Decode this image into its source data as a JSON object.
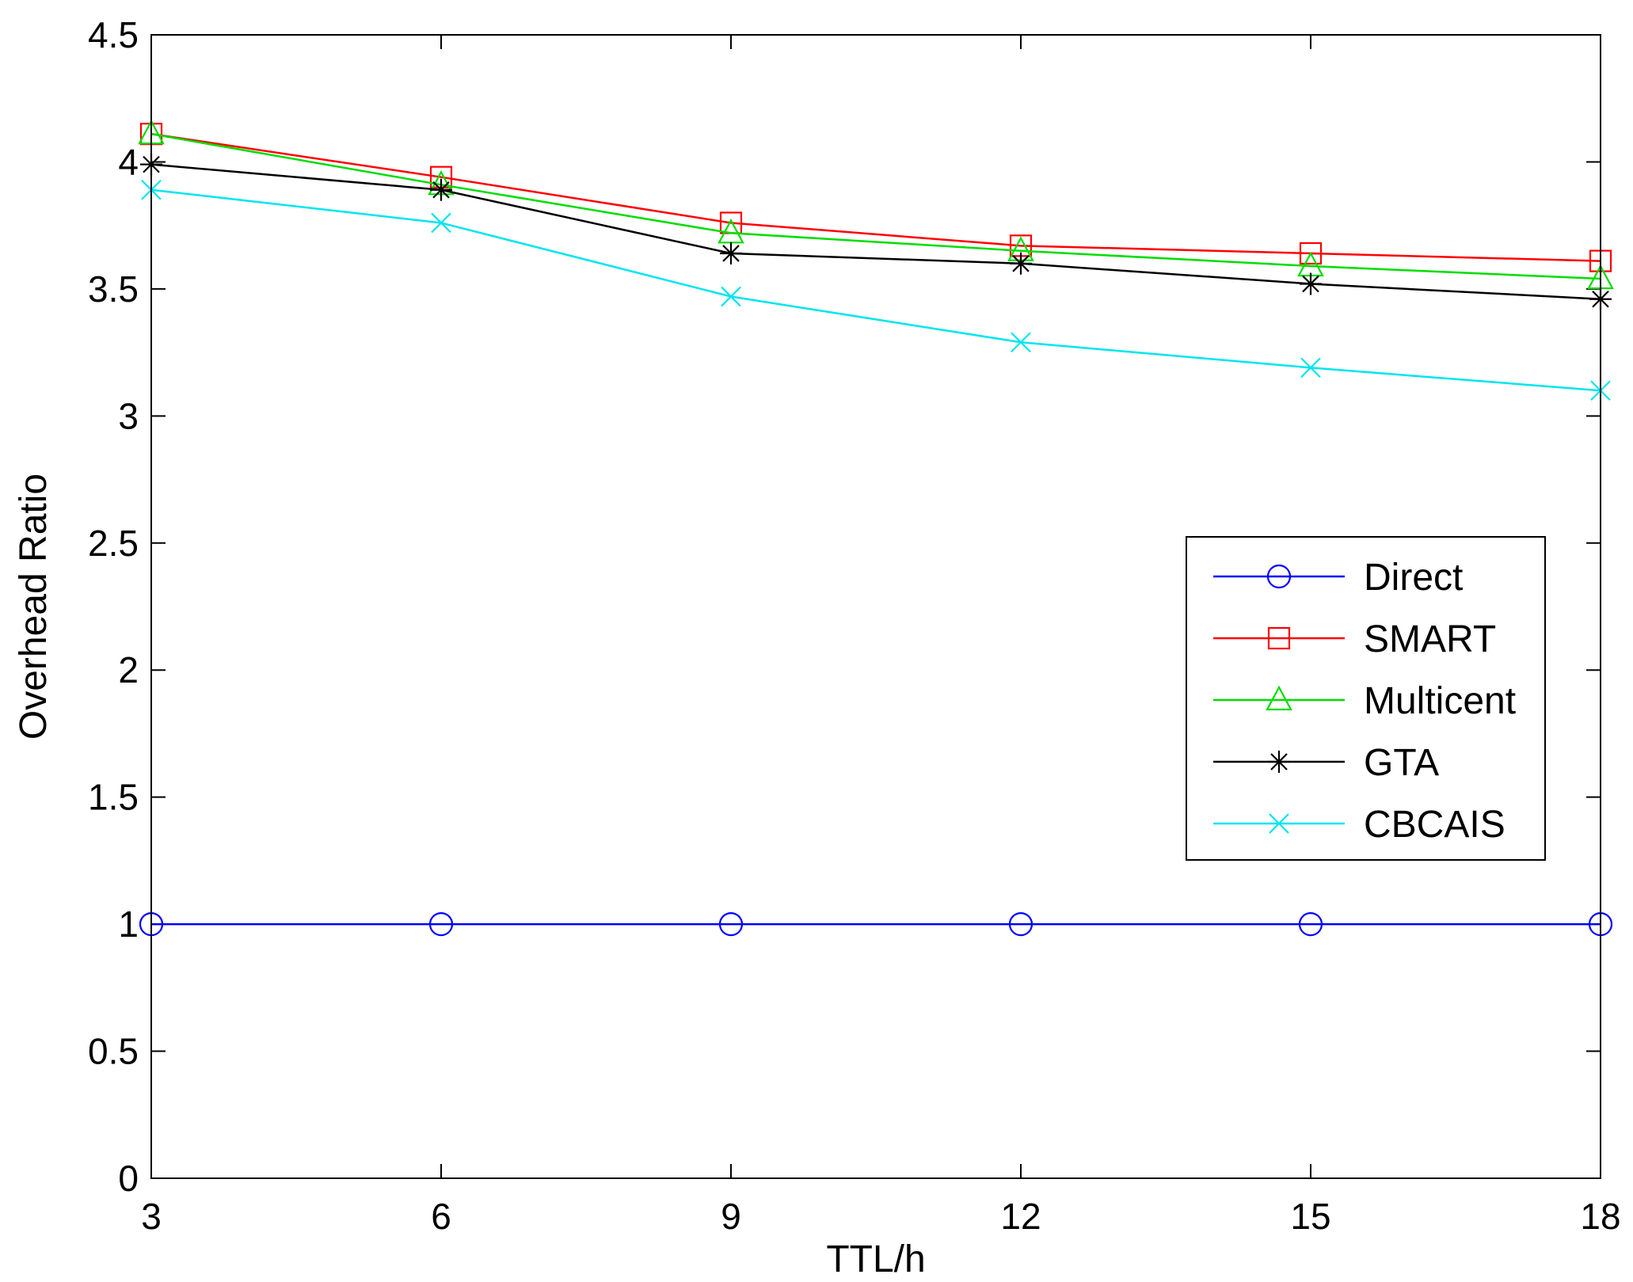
{
  "chart_data": {
    "type": "line",
    "xlabel": "TTL/h",
    "ylabel": "Overhead Ratio",
    "xlim": [
      3,
      18
    ],
    "ylim": [
      0,
      4.5
    ],
    "xticks": [
      "3",
      "6",
      "9",
      "12",
      "15",
      "18"
    ],
    "yticks": [
      "0",
      "0.5",
      "1",
      "1.5",
      "2",
      "2.5",
      "3",
      "3.5",
      "4",
      "4.5"
    ],
    "x": [
      3,
      6,
      9,
      12,
      15,
      18
    ],
    "grid": false,
    "legend_position": "center-right",
    "series": [
      {
        "name": "Direct",
        "color": "#0000ff",
        "marker": "circle",
        "values": [
          1.0,
          1.0,
          1.0,
          1.0,
          1.0,
          1.0
        ]
      },
      {
        "name": "SMART",
        "color": "#ff0000",
        "marker": "square",
        "values": [
          4.11,
          3.94,
          3.76,
          3.67,
          3.64,
          3.61
        ]
      },
      {
        "name": "Multicent",
        "color": "#00dd00",
        "marker": "triangle",
        "values": [
          4.11,
          3.91,
          3.72,
          3.65,
          3.59,
          3.54
        ]
      },
      {
        "name": "GTA",
        "color": "#000000",
        "marker": "asterisk",
        "values": [
          3.99,
          3.89,
          3.64,
          3.6,
          3.52,
          3.46
        ]
      },
      {
        "name": "CBCAIS",
        "color": "#00e5ee",
        "marker": "x",
        "values": [
          3.89,
          3.76,
          3.47,
          3.29,
          3.19,
          3.1
        ]
      }
    ]
  }
}
